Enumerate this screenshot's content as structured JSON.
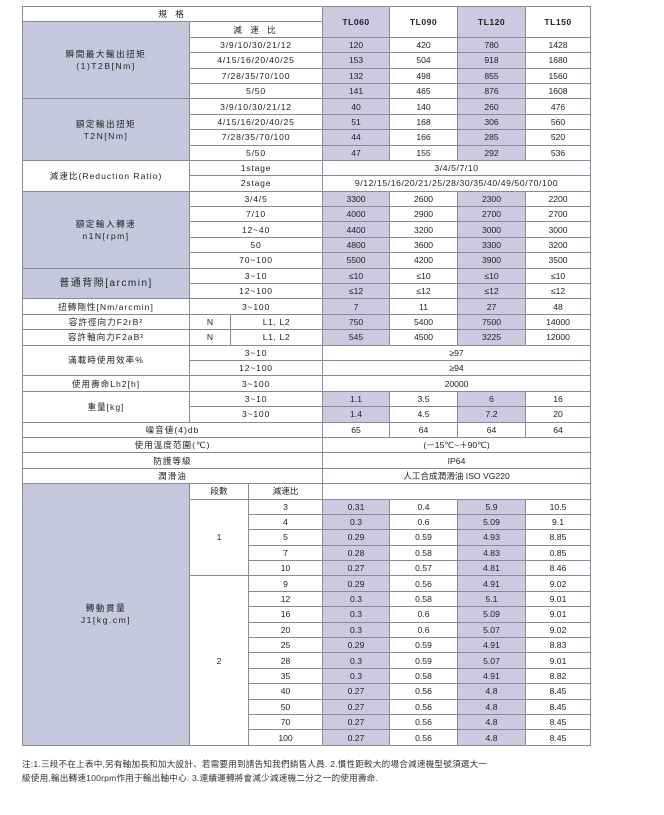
{
  "header": {
    "spec": "規 格",
    "ratio": "減 速 比",
    "models": [
      "TL060",
      "TL090",
      "TL120",
      "TL150"
    ]
  },
  "colors": {
    "label_bg": "#c6c9de",
    "highlight_column_bg": "#cec8e1",
    "border": "#8a8a96"
  },
  "t2b": {
    "label": [
      "瞬間最大輸出扭矩",
      "(1)T2B[Nm]"
    ],
    "rows": [
      {
        "ratio": "3/9/10/30/21/12",
        "values": [
          "120",
          "420",
          "780",
          "1428"
        ]
      },
      {
        "ratio": "4/15/16/20/40/25",
        "values": [
          "153",
          "504",
          "918",
          "1680"
        ]
      },
      {
        "ratio": "7/28/35/70/100",
        "values": [
          "132",
          "498",
          "855",
          "1560"
        ]
      },
      {
        "ratio": "5/50",
        "values": [
          "141",
          "465",
          "876",
          "1608"
        ]
      }
    ]
  },
  "t2n": {
    "label": [
      "額定輸出扭矩",
      "T2N[Nm]"
    ],
    "rows": [
      {
        "ratio": "3/9/10/30/21/12",
        "values": [
          "40",
          "140",
          "260",
          "476"
        ]
      },
      {
        "ratio": "4/15/16/20/40/25",
        "values": [
          "51",
          "168",
          "306",
          "560"
        ]
      },
      {
        "ratio": "7/28/35/70/100",
        "values": [
          "44",
          "166",
          "285",
          "520"
        ]
      },
      {
        "ratio": "5/50",
        "values": [
          "47",
          "155",
          "292",
          "536"
        ]
      }
    ]
  },
  "reduction_ratio": {
    "label": "減速比(Reduction Ratio)",
    "rows": [
      {
        "stage": "1stage",
        "value": "3/4/5/7/10"
      },
      {
        "stage": "2stage",
        "value": "9/12/15/16/20/21/25/28/30/35/40/49/50/70/100"
      }
    ]
  },
  "n1n": {
    "label": [
      "額定輸入轉速",
      "n1N[rpm]"
    ],
    "rows": [
      {
        "ratio": "3/4/5",
        "values": [
          "3300",
          "2600",
          "2300",
          "2200"
        ]
      },
      {
        "ratio": "7/10",
        "values": [
          "4000",
          "2900",
          "2700",
          "2700"
        ]
      },
      {
        "ratio": "12~40",
        "values": [
          "4400",
          "3200",
          "3000",
          "3000"
        ]
      },
      {
        "ratio": "50",
        "values": [
          "4800",
          "3600",
          "3300",
          "3200"
        ]
      },
      {
        "ratio": "70~100",
        "values": [
          "5500",
          "4200",
          "3900",
          "3500"
        ]
      }
    ]
  },
  "backlash": {
    "label": "普通背隙[arcmin]",
    "rows": [
      {
        "ratio": "3~10",
        "values": [
          "≤10",
          "≤10",
          "≤10",
          "≤10"
        ]
      },
      {
        "ratio": "12~100",
        "values": [
          "≤12",
          "≤12",
          "≤12",
          "≤12"
        ]
      }
    ]
  },
  "stiffness": {
    "label": "扭轉剛性[Nm/arcmin]",
    "ratio": "3~100",
    "values": [
      "7",
      "11",
      "27",
      "48"
    ]
  },
  "radial_force": {
    "label": "容許徑向力F2rB²",
    "unit": "N",
    "position": "L1, L2",
    "values": [
      "750",
      "5400",
      "7500",
      "14000"
    ]
  },
  "axial_force": {
    "label": "容許軸向力F2aB²",
    "unit": "N",
    "position": "L1, L2",
    "values": [
      "545",
      "4500",
      "3225",
      "12000"
    ]
  },
  "efficiency": {
    "label": "滿載時使用效率%",
    "rows": [
      {
        "ratio": "3~10",
        "value": "≥97"
      },
      {
        "ratio": "12~100",
        "value": "≥94"
      }
    ]
  },
  "life": {
    "label": "使用壽命Lh2[h]",
    "ratio": "3~100",
    "value": "20000"
  },
  "weight": {
    "label": "重量[kg]",
    "rows": [
      {
        "ratio": "3~10",
        "values": [
          "1.1",
          "3.5",
          "6",
          "16"
        ]
      },
      {
        "ratio": "3~100",
        "values": [
          "1.4",
          "4.5",
          "7.2",
          "20"
        ]
      }
    ]
  },
  "noise": {
    "label": "噪音値(4)db",
    "values": [
      "65",
      "64",
      "64",
      "64"
    ]
  },
  "temperature": {
    "label": "使用溫度范圍(℃)",
    "value": "(－15℃~＋90℃)"
  },
  "protection": {
    "label": "防護等級",
    "value": "IP64"
  },
  "lubricant": {
    "label": "潤滑油",
    "value": "人工合成潤滑油 ISO VG220"
  },
  "inertia": {
    "label": [
      "轉動貫量",
      "J1[kg.cm]"
    ],
    "stage_header": "段數",
    "ratio_header": "減速比",
    "stages": [
      {
        "stage": "1",
        "rows": [
          {
            "ratio": "3",
            "values": [
              "0.31",
              "0.4",
              "5.9",
              "10.5"
            ]
          },
          {
            "ratio": "4",
            "values": [
              "0.3",
              "0.6",
              "5.09",
              "9.1"
            ]
          },
          {
            "ratio": "5",
            "values": [
              "0.29",
              "0.59",
              "4.93",
              "8.85"
            ]
          },
          {
            "ratio": "7",
            "values": [
              "0.28",
              "0.58",
              "4.83",
              "0.85"
            ]
          },
          {
            "ratio": "10",
            "values": [
              "0.27",
              "0.57",
              "4.81",
              "8.46"
            ]
          }
        ]
      },
      {
        "stage": "2",
        "rows": [
          {
            "ratio": "9",
            "values": [
              "0.29",
              "0.56",
              "4.91",
              "9.02"
            ]
          },
          {
            "ratio": "12",
            "values": [
              "0.3",
              "0.58",
              "5.1",
              "9.01"
            ]
          },
          {
            "ratio": "16",
            "values": [
              "0.3",
              "0.6",
              "5.09",
              "9.01"
            ]
          },
          {
            "ratio": "20",
            "values": [
              "0.3",
              "0.6",
              "5.07",
              "9.02"
            ]
          },
          {
            "ratio": "25",
            "values": [
              "0.29",
              "0.59",
              "4.91",
              "8.83"
            ]
          },
          {
            "ratio": "28",
            "values": [
              "0.3",
              "0.59",
              "5.07",
              "9.01"
            ]
          },
          {
            "ratio": "35",
            "values": [
              "0.3",
              "0.58",
              "4.91",
              "8.82"
            ]
          },
          {
            "ratio": "40",
            "values": [
              "0.27",
              "0.56",
              "4.8",
              "8.45"
            ]
          },
          {
            "ratio": "50",
            "values": [
              "0.27",
              "0.56",
              "4.8",
              "8.45"
            ]
          },
          {
            "ratio": "70",
            "values": [
              "0.27",
              "0.56",
              "4.8",
              "8.45"
            ]
          },
          {
            "ratio": "100",
            "values": [
              "0.27",
              "0.56",
              "4.8",
              "8.45"
            ]
          }
        ]
      }
    ]
  },
  "footnote": {
    "lines": [
      "注:1.三段不在上表中,另有軸加長和加大設計、若需要用到請告知我們銷售人員. 2.慣性距較大的場合減速機型號須選大一",
      "級使用,輸出轉速100rpm作用于輸出軸中心. 3.連續運轉將會減少減速機二分之一的使用壽命."
    ]
  }
}
